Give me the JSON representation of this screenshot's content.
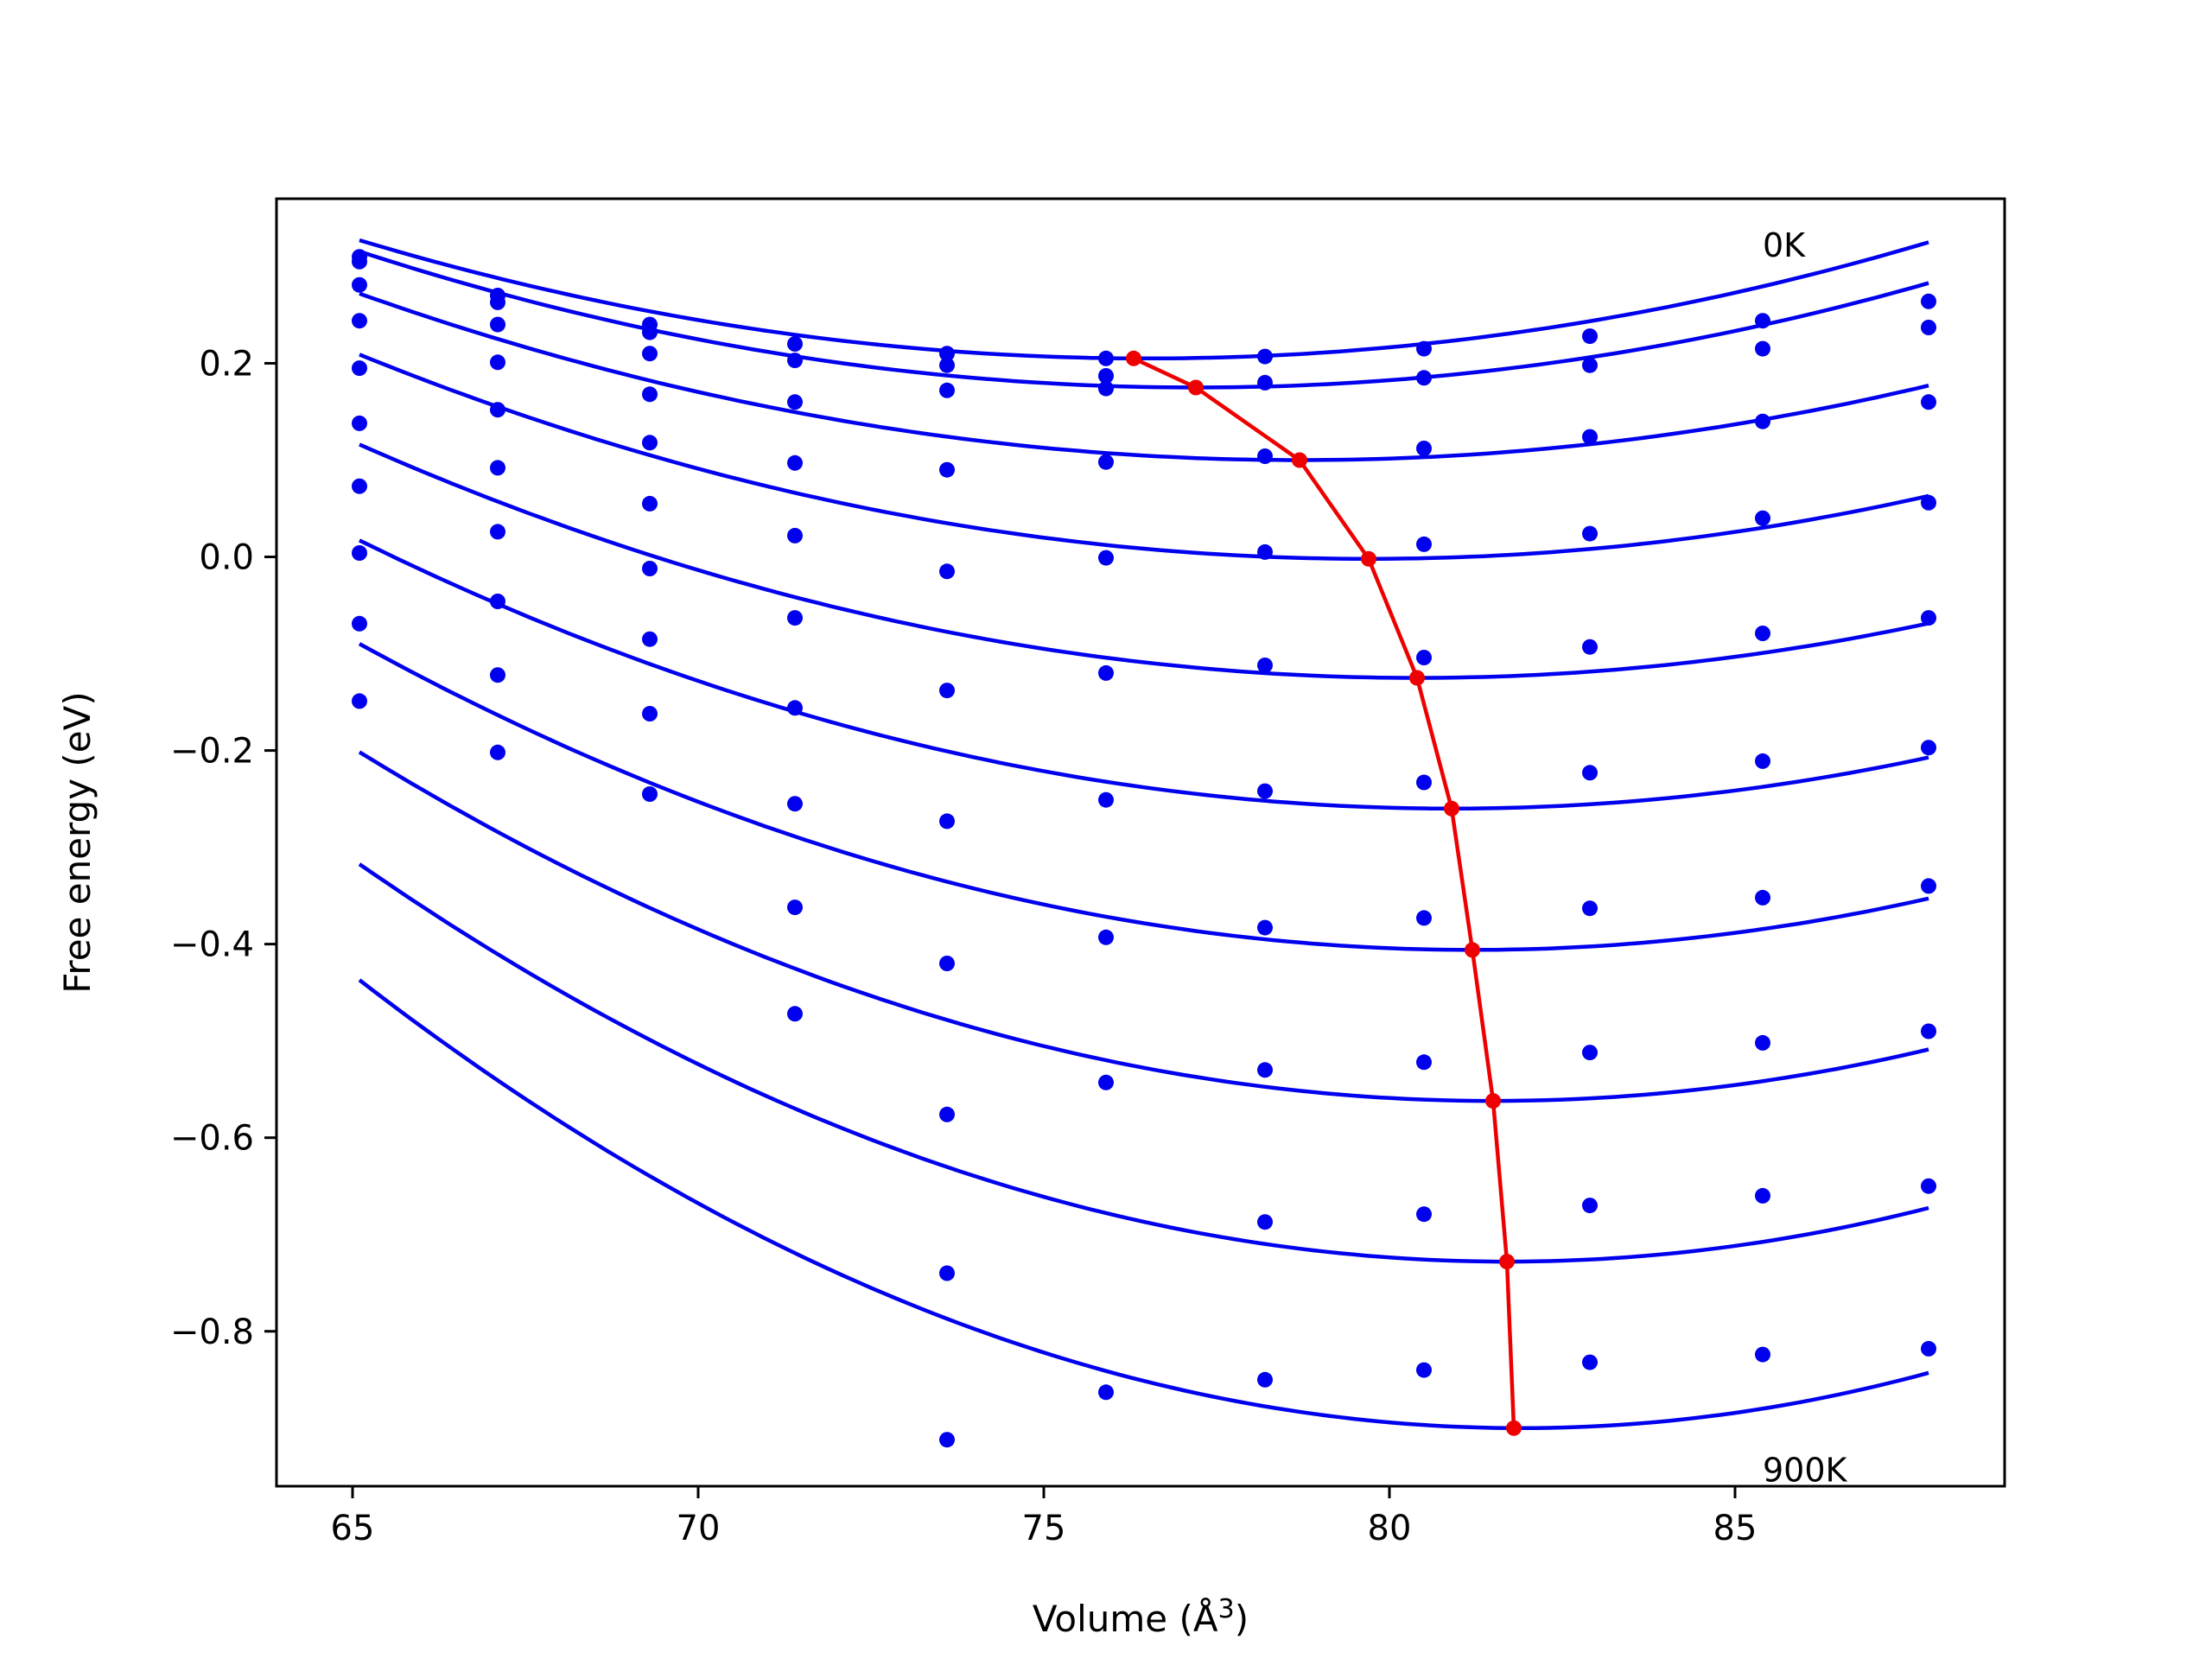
{
  "chart_data": {
    "type": "line",
    "xlabel": "Volume (Å",
    "xlabel_sup": "3",
    "xlabel_close": ")",
    "ylabel": "Free energy (eV)",
    "xlim": [
      63.9,
      88.9
    ],
    "ylim": [
      -0.96,
      0.37
    ],
    "xticks": [
      65,
      70,
      75,
      80,
      85
    ],
    "xtick_labels": [
      "65",
      "70",
      "75",
      "80",
      "85"
    ],
    "yticks": [
      -0.8,
      -0.6,
      -0.4,
      -0.2,
      0.0,
      0.2
    ],
    "ytick_labels": [
      "−0.8",
      "−0.6",
      "−0.4",
      "−0.2",
      "0.0",
      "0.2"
    ],
    "grid": false,
    "legend": "none",
    "annotations": [
      {
        "text": "0K",
        "x": 85.4,
        "y": 0.31
      },
      {
        "text": "900K",
        "x": 85.4,
        "y": -0.955
      }
    ],
    "colors": {
      "fit": "#0000ee",
      "points": "#0000ee",
      "minima": "#ee0000"
    },
    "x": [
      65.1,
      67.1,
      69.3,
      71.4,
      73.6,
      75.9,
      78.2,
      80.5,
      82.9,
      85.4,
      87.8
    ],
    "series": [
      {
        "points": [
          0.31,
          0.27,
          0.24,
          0.22,
          0.21,
          0.205,
          0.207,
          0.215,
          0.228,
          0.244,
          0.264
        ],
        "fit": {
          "e_min": 0.205,
          "v_min": 76.5,
          "a": 0.00094,
          "x_start": 65.1,
          "x_end": 87.8
        }
      },
      {
        "points": [
          0.305,
          0.263,
          0.232,
          0.203,
          0.198,
          0.187,
          0.18,
          0.185,
          0.198,
          0.215,
          0.237
        ],
        "fit": {
          "e_min": 0.175,
          "v_min": 77.2,
          "a": 0.00096,
          "x_start": 65.1,
          "x_end": 87.8
        }
      },
      {
        "points": [
          0.281,
          0.24,
          0.21,
          0.16,
          0.172,
          0.174,
          0.104,
          0.112,
          0.124,
          0.14,
          0.16
        ],
        "fit": {
          "e_min": 0.1,
          "v_min": 78.7,
          "a": 0.00093,
          "x_start": 65.1,
          "x_end": 87.8
        }
      },
      {
        "points": [
          0.244,
          0.201,
          0.168,
          0.097,
          0.09,
          0.098,
          0.005,
          0.013,
          0.024,
          0.04,
          0.056
        ],
        "fit": {
          "e_min": -0.002,
          "v_min": 79.7,
          "a": 0.00099,
          "x_start": 65.1,
          "x_end": 87.8
        }
      },
      {
        "points": [
          0.195,
          0.152,
          0.118,
          0.022,
          -0.015,
          -0.001,
          -0.112,
          -0.104,
          -0.093,
          -0.079,
          -0.063
        ],
        "fit": {
          "e_min": -0.125,
          "v_min": 80.4,
          "a": 0.00103,
          "x_start": 65.1,
          "x_end": 87.8
        }
      },
      {
        "points": [
          0.138,
          0.092,
          0.055,
          -0.063,
          -0.138,
          -0.12,
          -0.242,
          -0.233,
          -0.223,
          -0.211,
          -0.197
        ],
        "fit": {
          "e_min": -0.26,
          "v_min": 80.9,
          "a": 0.00111,
          "x_start": 65.1,
          "x_end": 87.8
        }
      },
      {
        "points": [
          0.073,
          0.026,
          -0.012,
          -0.156,
          -0.273,
          -0.251,
          -0.383,
          -0.373,
          -0.363,
          -0.352,
          -0.34
        ],
        "fit": {
          "e_min": -0.406,
          "v_min": 81.2,
          "a": 0.00122,
          "x_start": 65.1,
          "x_end": 87.8
        }
      },
      {
        "points": [
          0.004,
          -0.046,
          -0.085,
          -0.255,
          -0.42,
          -0.393,
          -0.53,
          -0.522,
          -0.512,
          -0.502,
          -0.49
        ],
        "fit": {
          "e_min": -0.562,
          "v_min": 81.5,
          "a": 0.00134,
          "x_start": 65.1,
          "x_end": 87.8
        }
      },
      {
        "points": [
          -0.069,
          -0.122,
          -0.162,
          -0.362,
          -0.576,
          -0.543,
          -0.687,
          -0.679,
          -0.67,
          -0.66,
          -0.65
        ],
        "fit": {
          "e_min": -0.728,
          "v_min": 81.7,
          "a": 0.00149,
          "x_start": 65.1,
          "x_end": 87.8
        }
      },
      {
        "points": [
          -0.149,
          -0.202,
          -0.245,
          -0.472,
          -0.74,
          -0.863,
          -0.85,
          -0.84,
          -0.832,
          -0.824,
          -0.818
        ],
        "fit": {
          "e_min": -0.9,
          "v_min": 81.9,
          "a": 0.00164,
          "x_start": 65.1,
          "x_end": 87.8
        }
      },
      {
        "points": [
          null,
          null,
          null,
          null,
          -0.912,
          null,
          null,
          null,
          null,
          null,
          null
        ],
        "fit": null
      }
    ],
    "minima": {
      "x": [
        76.3,
        77.2,
        78.7,
        79.7,
        80.4,
        80.9,
        81.2,
        81.5,
        81.7,
        81.8
      ],
      "y": [
        0.205,
        0.175,
        0.1,
        -0.002,
        -0.125,
        -0.26,
        -0.406,
        -0.562,
        -0.728,
        -0.9
      ]
    }
  }
}
